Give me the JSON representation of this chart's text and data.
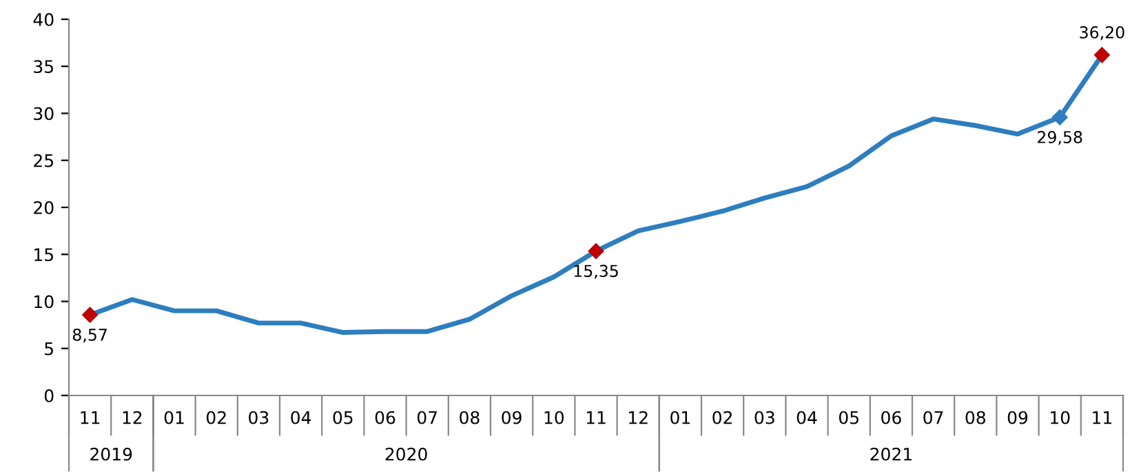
{
  "chart_data": {
    "type": "line",
    "categories": [
      "11",
      "12",
      "01",
      "02",
      "03",
      "04",
      "05",
      "06",
      "07",
      "08",
      "09",
      "10",
      "11",
      "12",
      "01",
      "02",
      "03",
      "04",
      "05",
      "06",
      "07",
      "08",
      "09",
      "10",
      "11"
    ],
    "series": [
      {
        "color": "#2e7ebf",
        "values": [
          8.57,
          10.2,
          9.0,
          9.0,
          7.7,
          7.7,
          6.7,
          6.8,
          6.8,
          8.1,
          10.6,
          12.6,
          15.35,
          17.5,
          18.5,
          19.6,
          21.0,
          22.2,
          24.4,
          27.6,
          29.4,
          28.7,
          27.8,
          29.58,
          36.2
        ],
        "value_labels": [
          "8,57",
          null,
          null,
          null,
          null,
          null,
          null,
          null,
          null,
          null,
          null,
          null,
          "15,35",
          null,
          null,
          null,
          null,
          null,
          null,
          null,
          null,
          null,
          null,
          "29,58",
          "36,20"
        ],
        "colors": [
          "#c00000",
          null,
          null,
          null,
          null,
          null,
          null,
          null,
          null,
          null,
          null,
          null,
          "#c00000",
          null,
          null,
          null,
          null,
          null,
          null,
          null,
          null,
          null,
          null,
          "#2e7ebf",
          "#c00000"
        ]
      }
    ],
    "annotations": [
      "2019",
      "2020",
      "2021"
    ],
    "ylim": [
      0,
      40
    ],
    "yticks": [
      0,
      5,
      10,
      15,
      20,
      25,
      30,
      35,
      40
    ],
    "grid": false,
    "legend": false,
    "line_style": "solid"
  }
}
